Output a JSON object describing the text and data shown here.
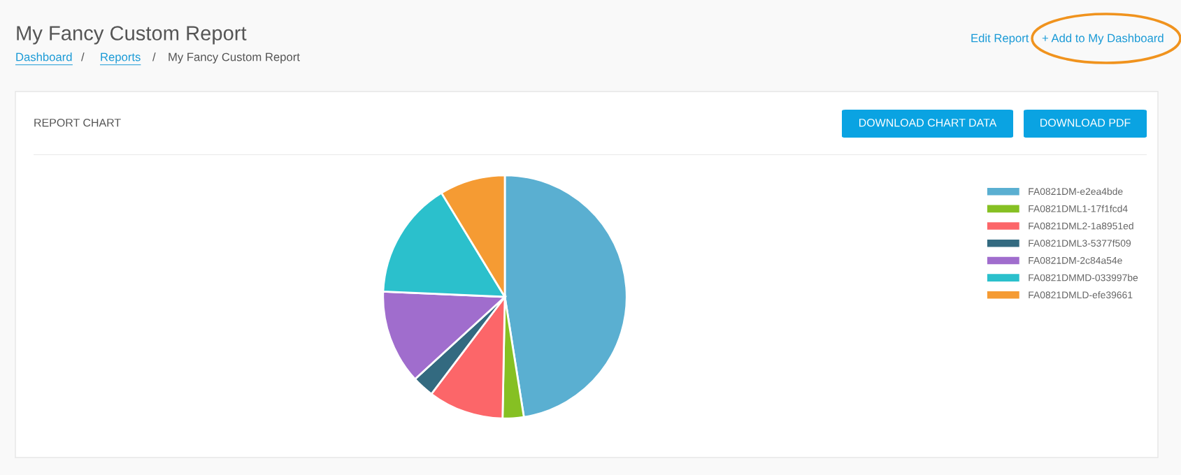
{
  "chart_data": {
    "type": "pie",
    "title": "My Fancy Custom Report",
    "subtitle": "REPORT CHART",
    "categories": [
      "FA0821DM-e2ea4bde",
      "FA0821DML1-17f1fcd4",
      "FA0821DML2-1a8951ed",
      "FA0821DML3-5377f509",
      "FA0821DM-2c84a54e",
      "FA0821DMMD-033997be",
      "FA0821DMLD-efe39661"
    ],
    "values": [
      47.5,
      2.8,
      10,
      2.9,
      12.5,
      15.6,
      8.7
    ],
    "colors": [
      "#5aafd1",
      "#86c023",
      "#fc6669",
      "#336a80",
      "#a06dcd",
      "#2bc0cc",
      "#f59b33"
    ],
    "legend": "top right",
    "annotations": [
      "Dashboard",
      "/",
      "Reports",
      "/",
      "My Fancy Custom Report",
      "Edit Report",
      "+ Add to My Dashboard",
      "DOWNLOAD CHART DATA",
      "DOWNLOAD PDF"
    ]
  }
}
